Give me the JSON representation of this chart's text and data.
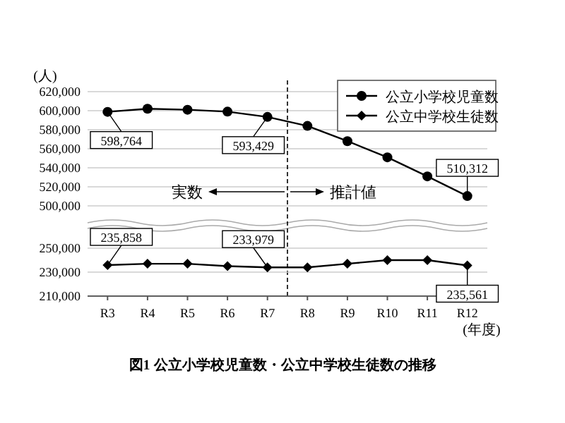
{
  "chart_data": [
    {
      "type": "line",
      "ylabel": "(人)",
      "categories": [
        null,
        null,
        null,
        null,
        null,
        null,
        null,
        null,
        null,
        null
      ],
      "ylim": [
        500000,
        620000
      ],
      "yticks": [
        {
          "value": 500000,
          "label": "500,000"
        },
        {
          "value": 520000,
          "label": "520,000"
        },
        {
          "value": 540000,
          "label": "540,000"
        },
        {
          "value": 560000,
          "label": "560,000"
        },
        {
          "value": 580000,
          "label": "580,000"
        },
        {
          "value": 600000,
          "label": "600,000"
        },
        {
          "value": 620000,
          "label": "620,000"
        }
      ],
      "grid": "y",
      "legend": "top right",
      "tick_labels": "y",
      "annotations": [
        "実数",
        "推計値"
      ],
      "series": [
        {
          "name": "公立小学校児童数",
          "color": "#000000",
          "marker": "circle",
          "values": [
            598764,
            602000,
            601000,
            599000,
            593429,
            584000,
            568000,
            551000,
            531000,
            510312
          ],
          "value_labels": [
            "598,764",
            null,
            null,
            null,
            "593,429",
            null,
            null,
            null,
            null,
            "510,312"
          ]
        }
      ]
    },
    {
      "type": "line",
      "title": "図1 公立小学校児童数・公立中学校生徒数の推移",
      "xlabel": "(年度)",
      "categories": [
        "R3",
        "R4",
        "R5",
        "R6",
        "R7",
        "R8",
        "R9",
        "R10",
        "R11",
        "R12"
      ],
      "ylim": [
        210000,
        250000
      ],
      "yticks": [
        {
          "value": 210000,
          "label": "210,000"
        },
        {
          "value": 230000,
          "label": "230,000"
        },
        {
          "value": 250000,
          "label": "250,000"
        }
      ],
      "grid": "y",
      "legend": "top right",
      "series": [
        {
          "name": "公立中学校生徒数",
          "color": "#000000",
          "marker": "diamond",
          "values": [
            235858,
            237000,
            237000,
            235000,
            233979,
            234000,
            237000,
            240000,
            240000,
            235561
          ],
          "value_labels": [
            "235,858",
            null,
            null,
            null,
            "233,979",
            null,
            null,
            null,
            null,
            "235,561"
          ]
        }
      ]
    }
  ]
}
